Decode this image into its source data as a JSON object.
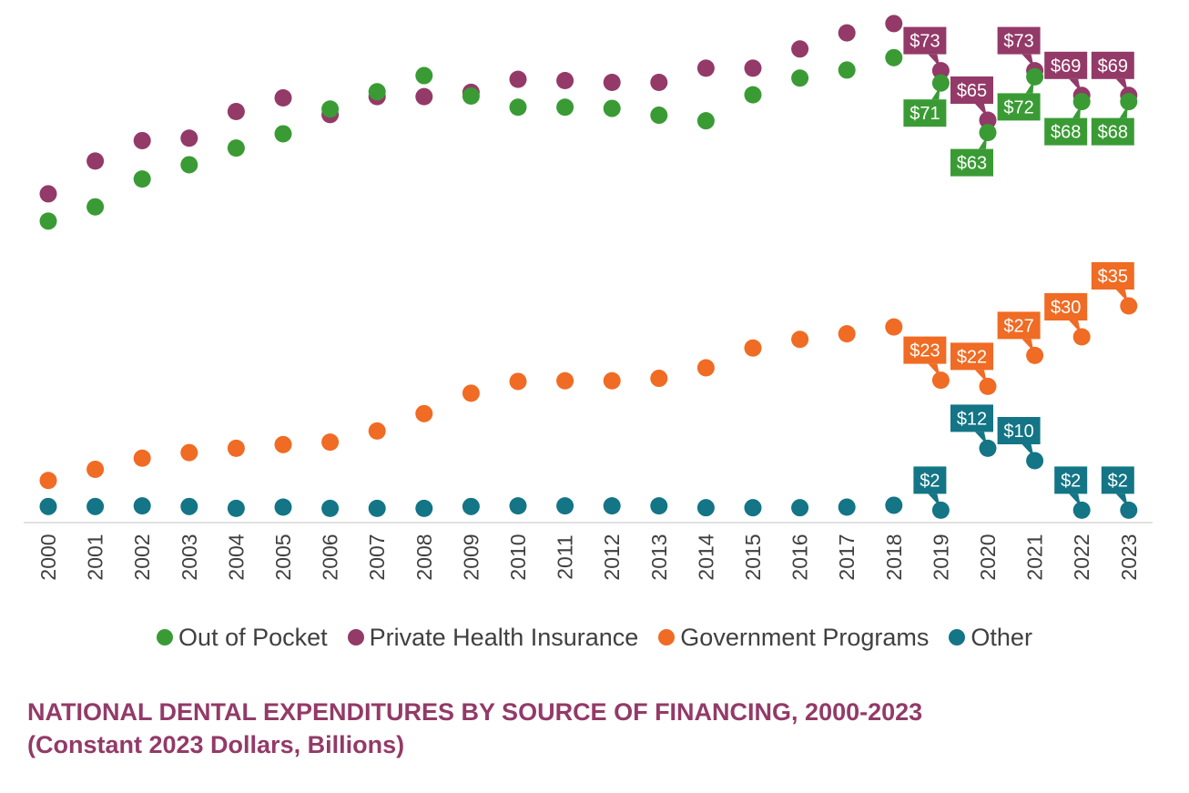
{
  "chart_data": {
    "type": "scatter",
    "title": "NATIONAL DENTAL EXPENDITURES BY SOURCE OF FINANCING, 2000-2023",
    "subtitle": "(Constant 2023 Dollars, Billions)",
    "xlabel": "",
    "ylabel": "",
    "ylim": [
      0,
      80
    ],
    "grid": false,
    "legend_position": "bottom",
    "categories": [
      "2000",
      "2001",
      "2002",
      "2003",
      "2004",
      "2005",
      "2006",
      "2007",
      "2008",
      "2009",
      "2010",
      "2011",
      "2012",
      "2013",
      "2014",
      "2015",
      "2016",
      "2017",
      "2018",
      "2019",
      "2020",
      "2021",
      "2022",
      "2023"
    ],
    "series": [
      {
        "name": "Out of Pocket",
        "color": "#3a9b35",
        "values": [
          48.7,
          51.0,
          55.5,
          57.8,
          60.5,
          62.8,
          66.8,
          69.6,
          72.2,
          68.9,
          67.1,
          67.1,
          66.9,
          65.8,
          64.9,
          69.1,
          71.8,
          73.1,
          75.1,
          71,
          63,
          72,
          68,
          68
        ]
      },
      {
        "name": "Private Health Insurance",
        "color": "#933a68",
        "values": [
          53.1,
          58.4,
          61.7,
          62.1,
          66.4,
          68.6,
          65.9,
          68.8,
          68.8,
          69.5,
          71.6,
          71.4,
          71.1,
          71.1,
          73.4,
          73.4,
          76.5,
          79.1,
          80.6,
          73,
          65,
          73,
          69,
          69
        ]
      },
      {
        "name": "Government Programs",
        "color": "#f06b24",
        "values": [
          6.8,
          8.6,
          10.4,
          11.3,
          12.0,
          12.6,
          13.0,
          14.8,
          17.6,
          20.9,
          22.8,
          22.9,
          22.9,
          23.3,
          25.0,
          28.2,
          29.6,
          30.5,
          31.6,
          23,
          22,
          27,
          30,
          35
        ]
      },
      {
        "name": "Other",
        "color": "#137585",
        "values": [
          2.6,
          2.6,
          2.7,
          2.6,
          2.3,
          2.5,
          2.3,
          2.3,
          2.3,
          2.6,
          2.7,
          2.7,
          2.7,
          2.7,
          2.4,
          2.4,
          2.4,
          2.5,
          2.8,
          2,
          12,
          10,
          2,
          2
        ]
      }
    ],
    "data_labels": [
      {
        "series": "Out of Pocket",
        "year": "2019",
        "text": "$71"
      },
      {
        "series": "Out of Pocket",
        "year": "2020",
        "text": "$63"
      },
      {
        "series": "Out of Pocket",
        "year": "2021",
        "text": "$72"
      },
      {
        "series": "Out of Pocket",
        "year": "2022",
        "text": "$68"
      },
      {
        "series": "Out of Pocket",
        "year": "2023",
        "text": "$68"
      },
      {
        "series": "Private Health Insurance",
        "year": "2019",
        "text": "$73"
      },
      {
        "series": "Private Health Insurance",
        "year": "2020",
        "text": "$65"
      },
      {
        "series": "Private Health Insurance",
        "year": "2021",
        "text": "$73"
      },
      {
        "series": "Private Health Insurance",
        "year": "2022",
        "text": "$69"
      },
      {
        "series": "Private Health Insurance",
        "year": "2023",
        "text": "$69"
      },
      {
        "series": "Government Programs",
        "year": "2019",
        "text": "$23"
      },
      {
        "series": "Government Programs",
        "year": "2020",
        "text": "$22"
      },
      {
        "series": "Government Programs",
        "year": "2021",
        "text": "$27"
      },
      {
        "series": "Government Programs",
        "year": "2022",
        "text": "$30"
      },
      {
        "series": "Government Programs",
        "year": "2023",
        "text": "$35"
      },
      {
        "series": "Other",
        "year": "2019",
        "text": "$2"
      },
      {
        "series": "Other",
        "year": "2020",
        "text": "$12"
      },
      {
        "series": "Other",
        "year": "2021",
        "text": "$10"
      },
      {
        "series": "Other",
        "year": "2022",
        "text": "$2"
      },
      {
        "series": "Other",
        "year": "2023",
        "text": "$2"
      }
    ]
  }
}
